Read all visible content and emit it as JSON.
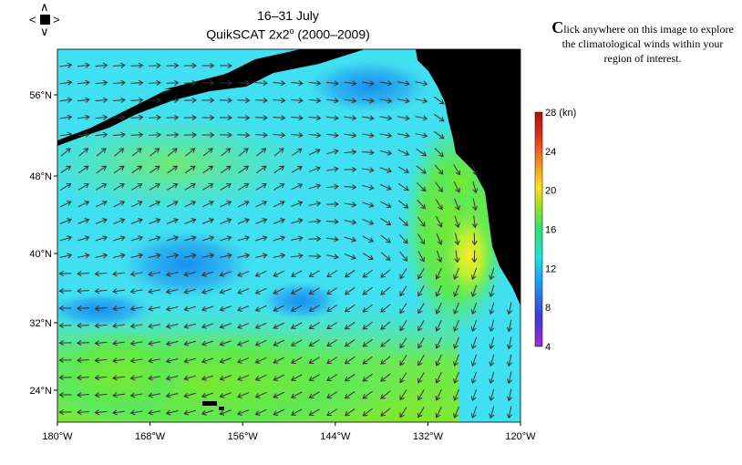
{
  "title_line1": "16–31 July",
  "title_line2_prefix": "QuikSCAT 2x2",
  "title_line2_sup": "o",
  "title_line2_suffix": " (2000–2009)",
  "info": {
    "cap": "C",
    "text": "lick anywhere on this image to explore the climatological winds within your region of interest."
  },
  "nav": {
    "up": "up-arrow",
    "down": "down-arrow",
    "left": "left-arrow",
    "right": "right-arrow"
  },
  "x_ticks": [
    "180°W",
    "168°W",
    "156°W",
    "144°W",
    "132°W",
    "120°W"
  ],
  "y_ticks": [
    "56°N",
    "48°N",
    "40°N",
    "32°N",
    "24°N"
  ],
  "colorbar": {
    "labels": [
      "28 (kn)",
      "24",
      "20",
      "16",
      "12",
      "8",
      "4"
    ],
    "colors": [
      "#9c2bd8",
      "#3c3cd8",
      "#1ca0f0",
      "#20e0e0",
      "#30e070",
      "#a0e020",
      "#ffe020",
      "#f09020",
      "#e03018",
      "#b01010"
    ]
  },
  "map_colors": {
    "ocean": "#40e0f0",
    "land": "#000000"
  }
}
